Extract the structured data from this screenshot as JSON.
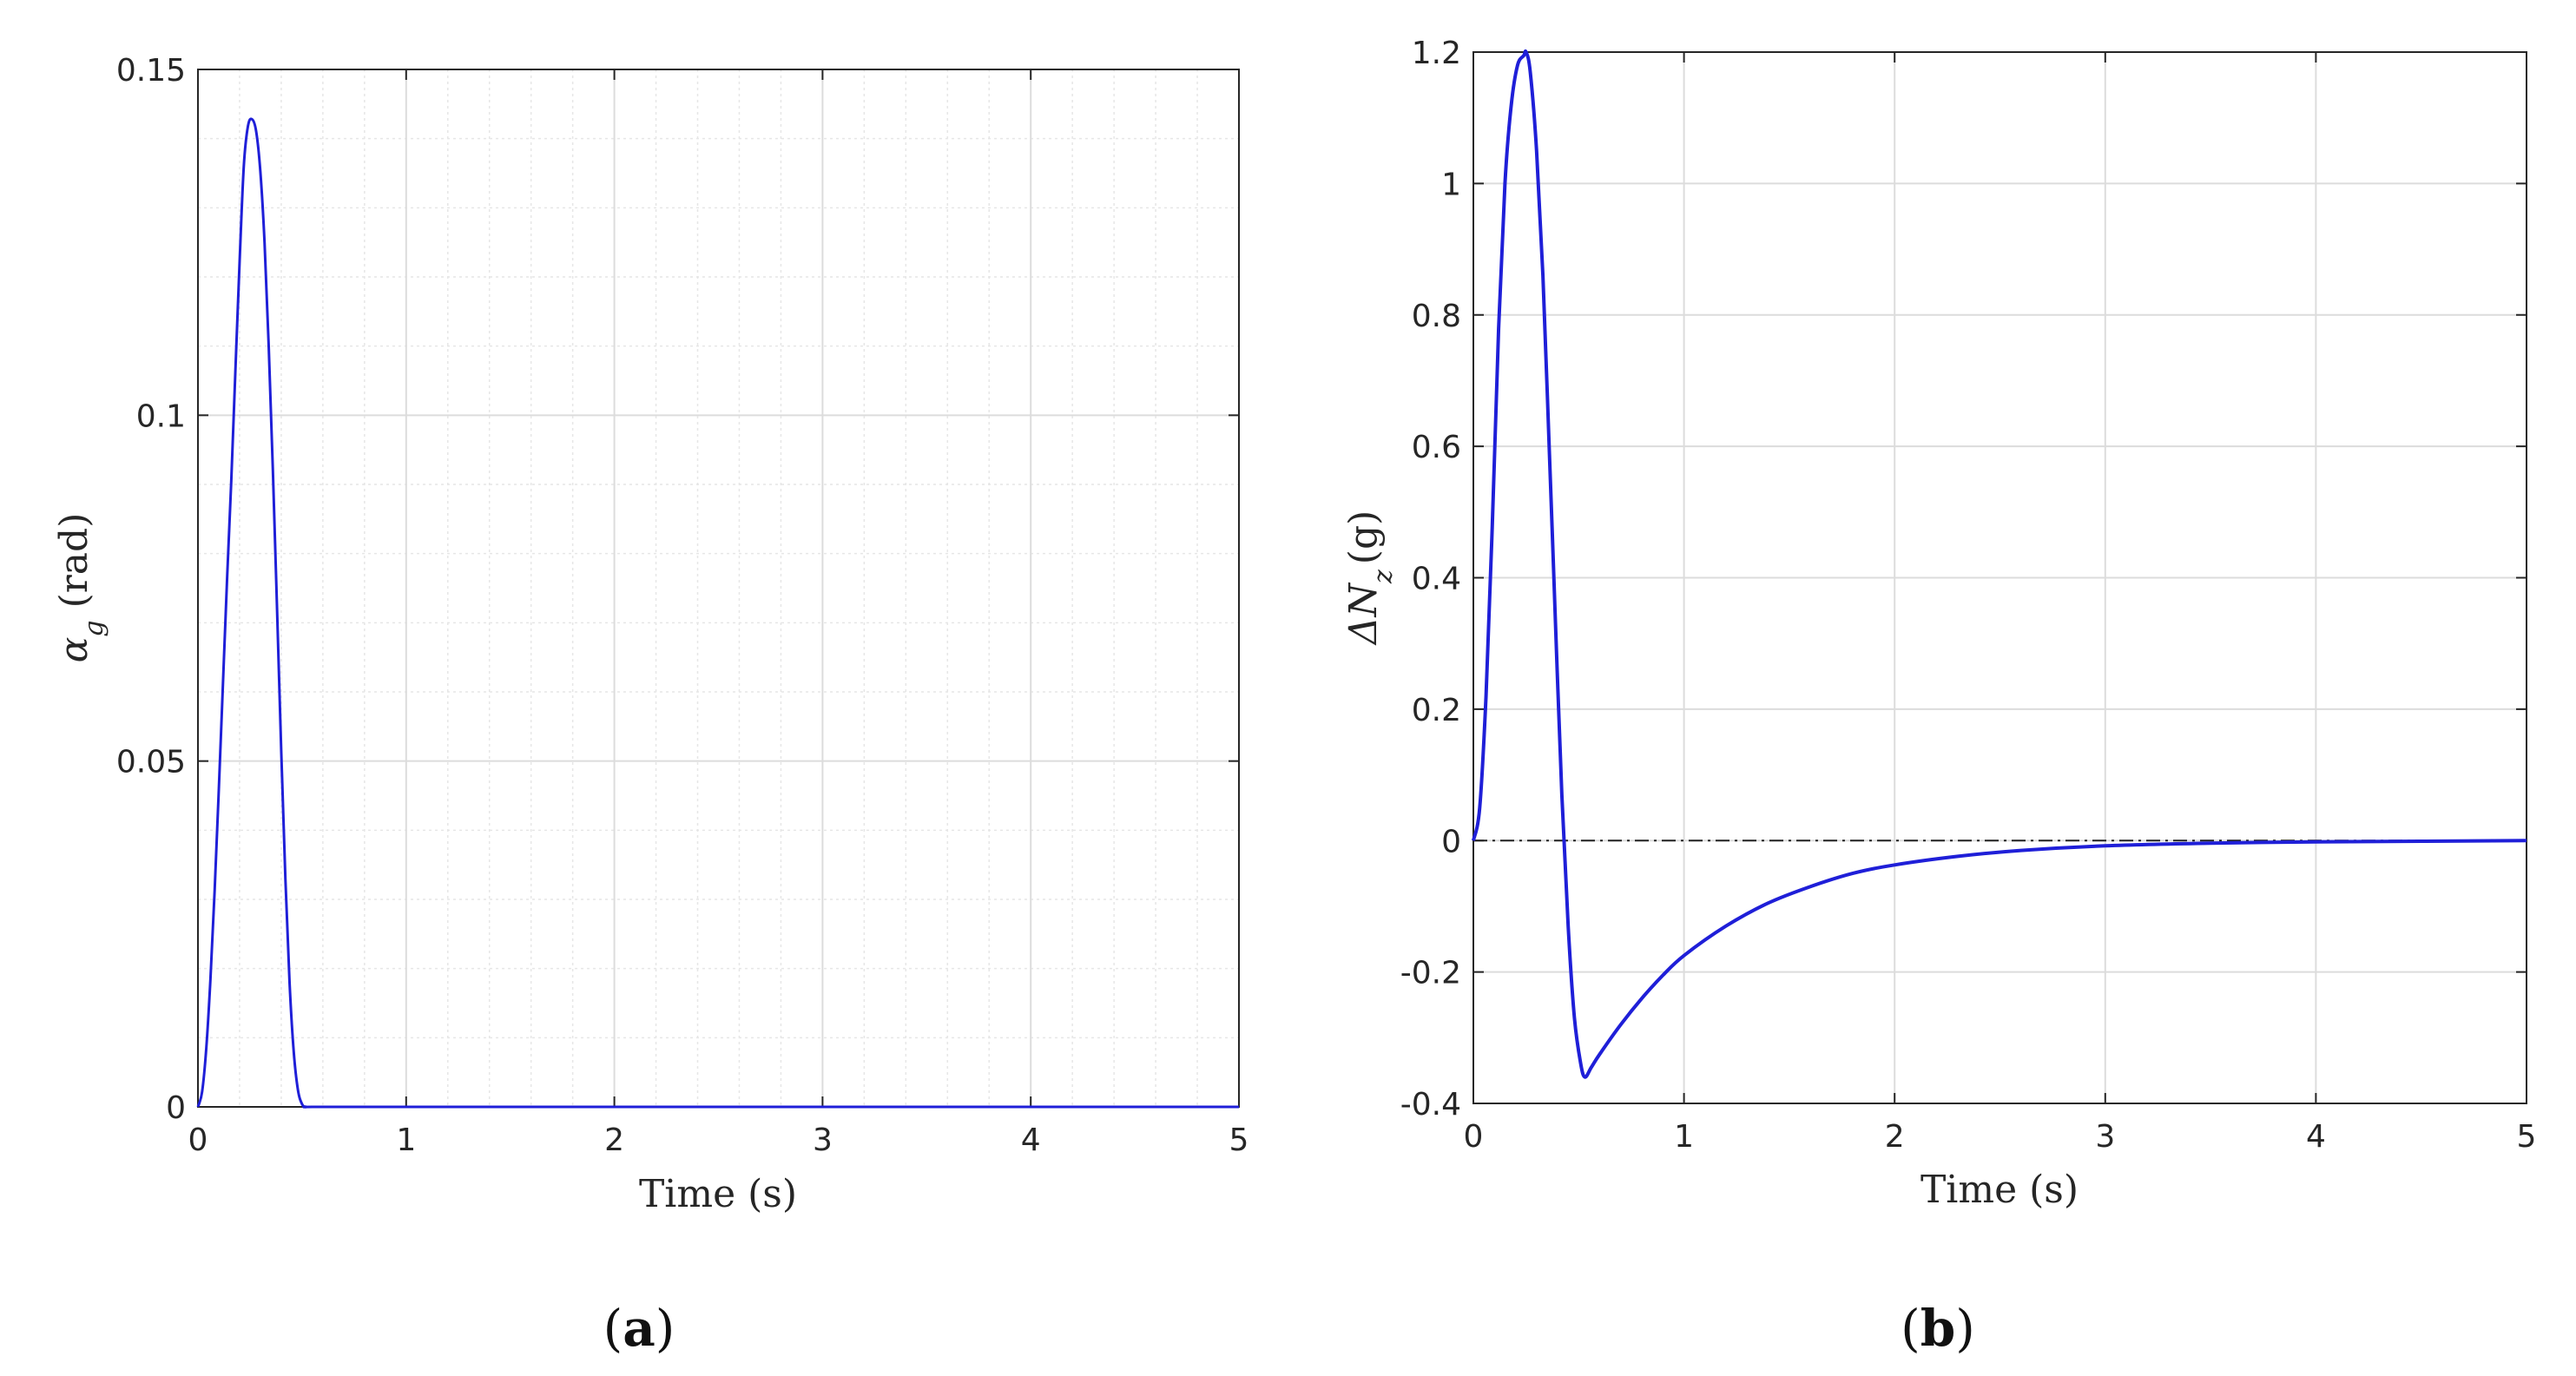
{
  "chart_data": [
    {
      "type": "line",
      "caption_letter": "a",
      "xlabel": "Time (s)",
      "ylabel": {
        "symbol": "α",
        "subscript": "g",
        "unit": "(rad)"
      },
      "xlim": [
        0,
        5
      ],
      "ylim": [
        0,
        0.15
      ],
      "xticks": [
        "0",
        "1",
        "2",
        "3",
        "4",
        "5"
      ],
      "yticks": [
        "0",
        "0.05",
        "0.1",
        "0.15"
      ],
      "grid": "major and minor",
      "series": [
        {
          "color": "#1f1fd8",
          "x": [
            0,
            0.02,
            0.04,
            0.06,
            0.08,
            0.1,
            0.12,
            0.14,
            0.16,
            0.18,
            0.2,
            0.22,
            0.24,
            0.26,
            0.28,
            0.3,
            0.32,
            0.34,
            0.36,
            0.38,
            0.4,
            0.42,
            0.44,
            0.46,
            0.48,
            0.5,
            0.52,
            0.55,
            1,
            2,
            3,
            4,
            5
          ],
          "y": [
            0,
            0.0022,
            0.0085,
            0.0185,
            0.0312,
            0.0458,
            0.0612,
            0.0765,
            0.0906,
            0.1067,
            0.1223,
            0.136,
            0.1418,
            0.1428,
            0.141,
            0.1352,
            0.125,
            0.11,
            0.092,
            0.072,
            0.0515,
            0.033,
            0.018,
            0.008,
            0.0025,
            0.0004,
            0,
            0,
            0,
            0,
            0,
            0,
            0
          ]
        }
      ]
    },
    {
      "type": "line",
      "caption_letter": "b",
      "xlabel": "Time (s)",
      "ylabel": {
        "symbol": "ΔN",
        "subscript": "z",
        "unit": "(g)"
      },
      "xlim": [
        0,
        5
      ],
      "ylim": [
        -0.4,
        1.2
      ],
      "xticks": [
        "0",
        "1",
        "2",
        "3",
        "4",
        "5"
      ],
      "yticks": [
        "-0.4",
        "-0.2",
        "0",
        "0.2",
        "0.4",
        "0.6",
        "0.8",
        "1",
        "1.2"
      ],
      "grid": "major",
      "reference_line": {
        "y": 0,
        "style": "dash-dot",
        "color": "#222222"
      },
      "series": [
        {
          "color": "#1f1fd8",
          "x": [
            0,
            0.03,
            0.06,
            0.09,
            0.12,
            0.15,
            0.18,
            0.21,
            0.24,
            0.25,
            0.27,
            0.3,
            0.33,
            0.36,
            0.39,
            0.42,
            0.45,
            0.48,
            0.51,
            0.53,
            0.56,
            0.6,
            0.7,
            0.8,
            0.9,
            1.0,
            1.2,
            1.4,
            1.6,
            1.8,
            2.0,
            2.3,
            2.6,
            3.0,
            3.5,
            4.0,
            4.5,
            5.0
          ],
          "y": [
            0,
            0.05,
            0.22,
            0.48,
            0.78,
            1.0,
            1.12,
            1.18,
            1.195,
            1.2,
            1.17,
            1.05,
            0.86,
            0.6,
            0.33,
            0.07,
            -0.13,
            -0.27,
            -0.34,
            -0.36,
            -0.345,
            -0.325,
            -0.28,
            -0.24,
            -0.205,
            -0.175,
            -0.13,
            -0.095,
            -0.07,
            -0.05,
            -0.037,
            -0.024,
            -0.015,
            -0.008,
            -0.004,
            -0.002,
            -0.001,
            0
          ]
        }
      ]
    }
  ]
}
